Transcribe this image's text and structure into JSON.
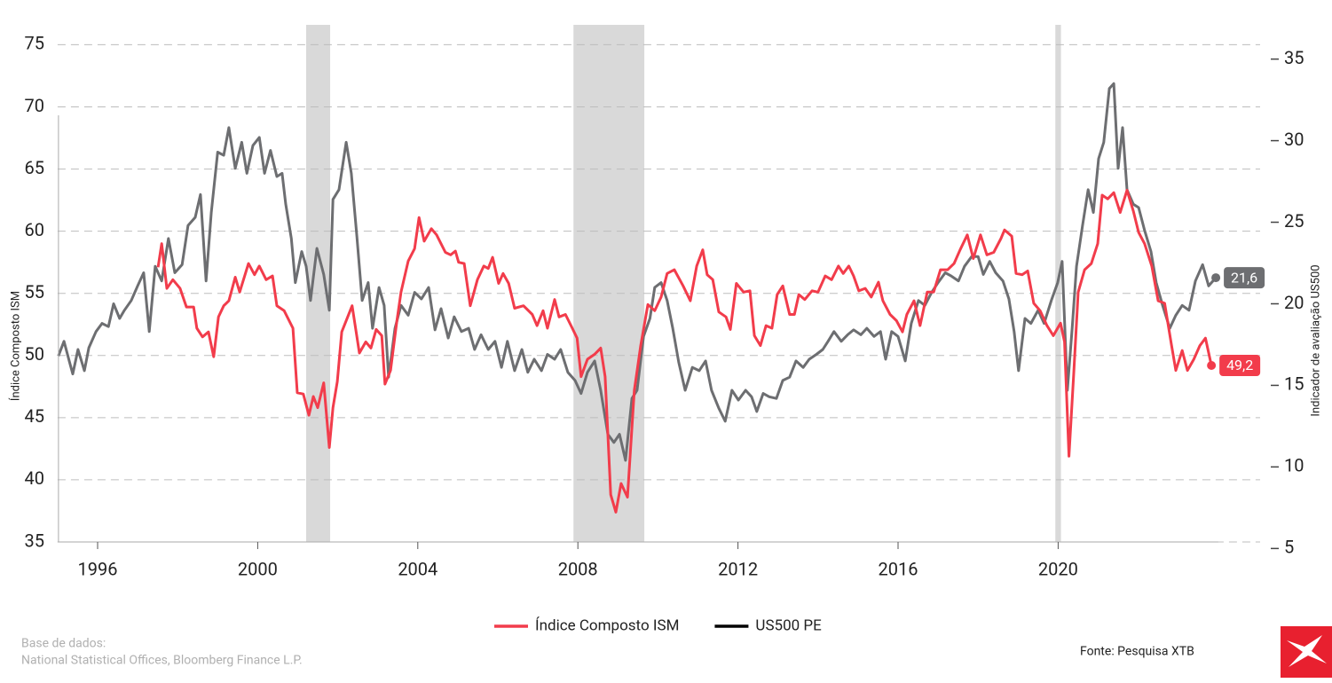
{
  "chart_data": {
    "type": "line",
    "y_label": "Índice Composto ISM",
    "y2_label": "Indicador de avaliação US500",
    "source_label": "Base de dados:",
    "source": "National Statistical Offices, Bloomberg Finance L.P.",
    "credit": "Fonte: Pesquisa XTB",
    "xlim": [
      1995,
      2024
    ],
    "xticks": [
      1996,
      2000,
      2004,
      2008,
      2012,
      2016,
      2020
    ],
    "ylim": [
      35,
      76.6
    ],
    "yticks": [
      35,
      40,
      45,
      50,
      55,
      60,
      65,
      70,
      75
    ],
    "y2lim": [
      5.4,
      37.1
    ],
    "y2ticks": [
      5,
      10,
      15,
      20,
      25,
      30,
      35
    ],
    "grid": true,
    "shaded_ranges": [
      [
        2001.21,
        2001.81
      ],
      [
        2007.89,
        2009.66
      ],
      [
        2019.93,
        2020.07
      ]
    ],
    "shade_color": "#d9d9d9",
    "series": [
      {
        "name": "Índice Composto ISM",
        "color": "#f23c4b",
        "axis": "y",
        "end_label": "49,2",
        "x": [
          1997.51,
          1997.6,
          1997.73,
          1997.88,
          1998.06,
          1998.22,
          1998.4,
          1998.48,
          1998.62,
          1998.77,
          1998.9,
          1999.02,
          1999.15,
          1999.28,
          1999.44,
          1999.55,
          1999.77,
          1999.92,
          2000.04,
          2000.21,
          2000.37,
          2000.48,
          2000.66,
          2000.88,
          2000.99,
          2001.14,
          2001.28,
          2001.39,
          2001.5,
          2001.65,
          2001.79,
          2001.88,
          2001.99,
          2002.1,
          2002.36,
          2002.54,
          2002.7,
          2002.83,
          2002.96,
          2003.1,
          2003.18,
          2003.32,
          2003.47,
          2003.58,
          2003.76,
          2003.92,
          2004.03,
          2004.16,
          2004.34,
          2004.47,
          2004.69,
          2004.82,
          2004.94,
          2005.02,
          2005.16,
          2005.31,
          2005.49,
          2005.65,
          2005.76,
          2005.87,
          2006.02,
          2006.13,
          2006.27,
          2006.42,
          2006.64,
          2006.86,
          2006.98,
          2007.13,
          2007.24,
          2007.42,
          2007.53,
          2007.69,
          2007.86,
          2007.98,
          2008.08,
          2008.24,
          2008.42,
          2008.57,
          2008.68,
          2008.82,
          2008.95,
          2009.08,
          2009.24,
          2009.41,
          2009.57,
          2009.75,
          2009.92,
          2010.08,
          2010.23,
          2010.41,
          2010.63,
          2010.81,
          2010.97,
          2011.12,
          2011.23,
          2011.37,
          2011.52,
          2011.7,
          2011.81,
          2011.96,
          2012.14,
          2012.3,
          2012.41,
          2012.56,
          2012.7,
          2012.85,
          2012.98,
          2013.12,
          2013.29,
          2013.41,
          2013.52,
          2013.67,
          2013.85,
          2014.0,
          2014.18,
          2014.34,
          2014.51,
          2014.63,
          2014.77,
          2014.89,
          2015.02,
          2015.18,
          2015.33,
          2015.51,
          2015.62,
          2015.8,
          2015.96,
          2016.11,
          2016.22,
          2016.4,
          2016.55,
          2016.73,
          2016.89,
          2017.06,
          2017.24,
          2017.4,
          2017.55,
          2017.73,
          2017.88,
          2018.06,
          2018.22,
          2018.39,
          2018.57,
          2018.66,
          2018.84,
          2018.95,
          2019.1,
          2019.24,
          2019.39,
          2019.55,
          2019.72,
          2019.88,
          2020.06,
          2020.16,
          2020.27,
          2020.39,
          2020.5,
          2020.66,
          2020.83,
          2020.99,
          2021.1,
          2021.24,
          2021.39,
          2021.55,
          2021.72,
          2021.88,
          2022.01,
          2022.16,
          2022.34,
          2022.5,
          2022.66,
          2022.83,
          2022.94,
          2023.1,
          2023.23,
          2023.39,
          2023.54,
          2023.68,
          2023.83
        ],
        "values": [
          57.1,
          59,
          55.4,
          56.1,
          55.4,
          53.9,
          53.9,
          52.2,
          51.5,
          51.9,
          49.9,
          53.1,
          54,
          54.4,
          56.3,
          55.1,
          57.4,
          56.5,
          57.2,
          56.1,
          56.4,
          54,
          53.6,
          52.2,
          47,
          46.9,
          45.2,
          46.7,
          45.8,
          47.8,
          42.6,
          45.8,
          47.9,
          51.9,
          54,
          50.2,
          51.1,
          50.6,
          52.1,
          51.6,
          47.7,
          48.8,
          52.6,
          55.1,
          57.6,
          58.6,
          61.1,
          59.2,
          60.2,
          59.7,
          58.3,
          58.1,
          58.4,
          57.5,
          57.4,
          54,
          56.1,
          57.2,
          57,
          57.9,
          55.8,
          56.6,
          55.8,
          53.8,
          54,
          53.3,
          52.4,
          53.6,
          52.2,
          54.5,
          53.1,
          53.3,
          52.2,
          51.4,
          48.3,
          49.7,
          50.1,
          50.6,
          48.3,
          38.8,
          37.4,
          39.7,
          38.6,
          47.2,
          50.8,
          54.1,
          53.6,
          54.7,
          56.6,
          56.9,
          55.6,
          54.4,
          57.2,
          58.5,
          56.5,
          56.1,
          53.5,
          53.1,
          52.1,
          55.8,
          55.1,
          55.2,
          51.6,
          50.8,
          52.4,
          52.2,
          54.9,
          55.6,
          53.3,
          53.3,
          54.9,
          54.5,
          55.2,
          55.1,
          56.4,
          56.1,
          57.2,
          56.6,
          57.2,
          56.4,
          55.2,
          55.4,
          54.7,
          55.9,
          54.4,
          53.3,
          52.8,
          51.9,
          53.3,
          54.4,
          52.4,
          55.1,
          55.1,
          56.9,
          56.9,
          57.4,
          58.5,
          59.7,
          57.8,
          59.7,
          58.1,
          58.3,
          59.4,
          60.1,
          59.6,
          56.6,
          56.5,
          56.8,
          54.2,
          53.6,
          52.4,
          51.6,
          52.6,
          51.1,
          41.9,
          48.6,
          55.1,
          56.9,
          57.4,
          59,
          62.9,
          62.6,
          63.1,
          61.5,
          63.3,
          61.6,
          59.9,
          59,
          57.2,
          54.4,
          54.2,
          50.9,
          48.8,
          50.4,
          48.8,
          49.7,
          50.8,
          51.4,
          49.2
        ]
      },
      {
        "name": "US500 PE",
        "color": "#6d6e71",
        "legend_color": "#000000",
        "axis": "y2",
        "end_label": "21,6",
        "x": [
          1995.02,
          1995.16,
          1995.29,
          1995.38,
          1995.51,
          1995.67,
          1995.78,
          1995.96,
          1996.11,
          1996.27,
          1996.4,
          1996.55,
          1996.67,
          1996.84,
          1997.0,
          1997.15,
          1997.29,
          1997.44,
          1997.6,
          1997.77,
          1997.93,
          1998.11,
          1998.26,
          1998.44,
          1998.57,
          1998.71,
          1998.84,
          1999.0,
          1999.15,
          1999.28,
          1999.44,
          1999.6,
          1999.73,
          1999.88,
          2000.04,
          2000.17,
          2000.32,
          2000.48,
          2000.61,
          2000.7,
          2000.84,
          2000.94,
          2001.1,
          2001.21,
          2001.32,
          2001.48,
          2001.65,
          2001.79,
          2001.88,
          2002.03,
          2002.21,
          2002.34,
          2002.48,
          2002.61,
          2002.76,
          2002.87,
          2003.03,
          2003.16,
          2003.27,
          2003.43,
          2003.58,
          2003.76,
          2003.92,
          2004.09,
          2004.27,
          2004.43,
          2004.58,
          2004.76,
          2004.91,
          2005.09,
          2005.27,
          2005.42,
          2005.58,
          2005.76,
          2005.93,
          2006.09,
          2006.24,
          2006.42,
          2006.6,
          2006.75,
          2006.91,
          2007.09,
          2007.24,
          2007.42,
          2007.57,
          2007.75,
          2007.93,
          2008.08,
          2008.24,
          2008.42,
          2008.57,
          2008.75,
          2008.9,
          2009.04,
          2009.19,
          2009.35,
          2009.48,
          2009.64,
          2009.8,
          2009.92,
          2010.08,
          2010.23,
          2010.37,
          2010.52,
          2010.68,
          2010.86,
          2011.03,
          2011.19,
          2011.34,
          2011.52,
          2011.68,
          2011.85,
          2012.01,
          2012.19,
          2012.34,
          2012.47,
          2012.63,
          2012.78,
          2012.96,
          2013.12,
          2013.29,
          2013.45,
          2013.63,
          2013.78,
          2013.96,
          2014.12,
          2014.25,
          2014.4,
          2014.58,
          2014.74,
          2014.89,
          2015.07,
          2015.22,
          2015.4,
          2015.56,
          2015.69,
          2015.84,
          2016.0,
          2016.18,
          2016.33,
          2016.51,
          2016.67,
          2016.84,
          2017.0,
          2017.18,
          2017.33,
          2017.51,
          2017.66,
          2017.84,
          2018.0,
          2018.13,
          2018.29,
          2018.44,
          2018.62,
          2018.77,
          2018.9,
          2019.01,
          2019.17,
          2019.32,
          2019.5,
          2019.65,
          2019.83,
          2019.99,
          2020.1,
          2020.23,
          2020.35,
          2020.46,
          2020.61,
          2020.75,
          2020.88,
          2021.01,
          2021.14,
          2021.28,
          2021.39,
          2021.5,
          2021.61,
          2021.72,
          2021.88,
          2022.01,
          2022.16,
          2022.32,
          2022.45,
          2022.61,
          2022.79,
          2022.94,
          2023.1,
          2023.27,
          2023.43,
          2023.61,
          2023.76,
          2023.94
        ],
        "values": [
          16.8,
          17.7,
          16.5,
          15.7,
          17.2,
          15.9,
          17.3,
          18.3,
          18.8,
          18.6,
          20,
          19.1,
          19.6,
          20.2,
          21.1,
          21.9,
          18.3,
          22.3,
          21.4,
          24,
          21.9,
          22.4,
          24.8,
          25.3,
          26.7,
          21.4,
          25.6,
          29.3,
          29.1,
          30.8,
          28.3,
          29.9,
          28,
          29.7,
          30.2,
          28,
          29.4,
          27.8,
          28,
          26.1,
          24,
          21.3,
          23.2,
          22.3,
          20.2,
          23.4,
          21.8,
          19.6,
          26.4,
          27,
          29.9,
          28,
          24.1,
          20.2,
          21.3,
          18.5,
          21,
          19.9,
          15.5,
          18.5,
          19.9,
          19.3,
          20.7,
          20.3,
          21,
          18.4,
          19.7,
          17.9,
          19.2,
          18.3,
          18.5,
          17.2,
          18.1,
          17.2,
          17.7,
          16.1,
          17.7,
          15.9,
          17.2,
          15.8,
          16.6,
          15.9,
          16.9,
          16.6,
          17.2,
          15.8,
          15.3,
          14.5,
          15.8,
          16.5,
          14.7,
          12,
          11.5,
          12,
          10.4,
          14.2,
          14.7,
          18,
          19.1,
          21,
          21.3,
          20.2,
          18.5,
          16.4,
          14.7,
          16.1,
          15.9,
          16.5,
          14.7,
          13.6,
          12.8,
          14.7,
          14.1,
          14.7,
          14.3,
          13.4,
          14.5,
          14.3,
          14.2,
          15.3,
          15.5,
          16.5,
          16.1,
          16.6,
          16.9,
          17.2,
          17.7,
          18.3,
          17.7,
          18.1,
          18.4,
          18.1,
          18.5,
          18,
          18.3,
          16.6,
          18.3,
          18,
          16.5,
          18.8,
          20.2,
          19.9,
          20.7,
          21.3,
          21.9,
          21.7,
          21.4,
          22.3,
          22.9,
          22.9,
          21.8,
          22.6,
          21.9,
          21.4,
          20.3,
          18.3,
          15.9,
          19.1,
          18.8,
          19.6,
          18.8,
          20.2,
          21.3,
          22.6,
          14.7,
          18.5,
          22.3,
          24.8,
          27,
          25.6,
          28.9,
          29.9,
          33.2,
          33.5,
          28.3,
          30.8,
          27,
          26.1,
          25.9,
          24.5,
          23.2,
          21.3,
          19.9,
          18.5,
          19.3,
          19.9,
          19.6,
          21.4,
          22.4,
          21.1,
          21.6
        ]
      }
    ]
  }
}
